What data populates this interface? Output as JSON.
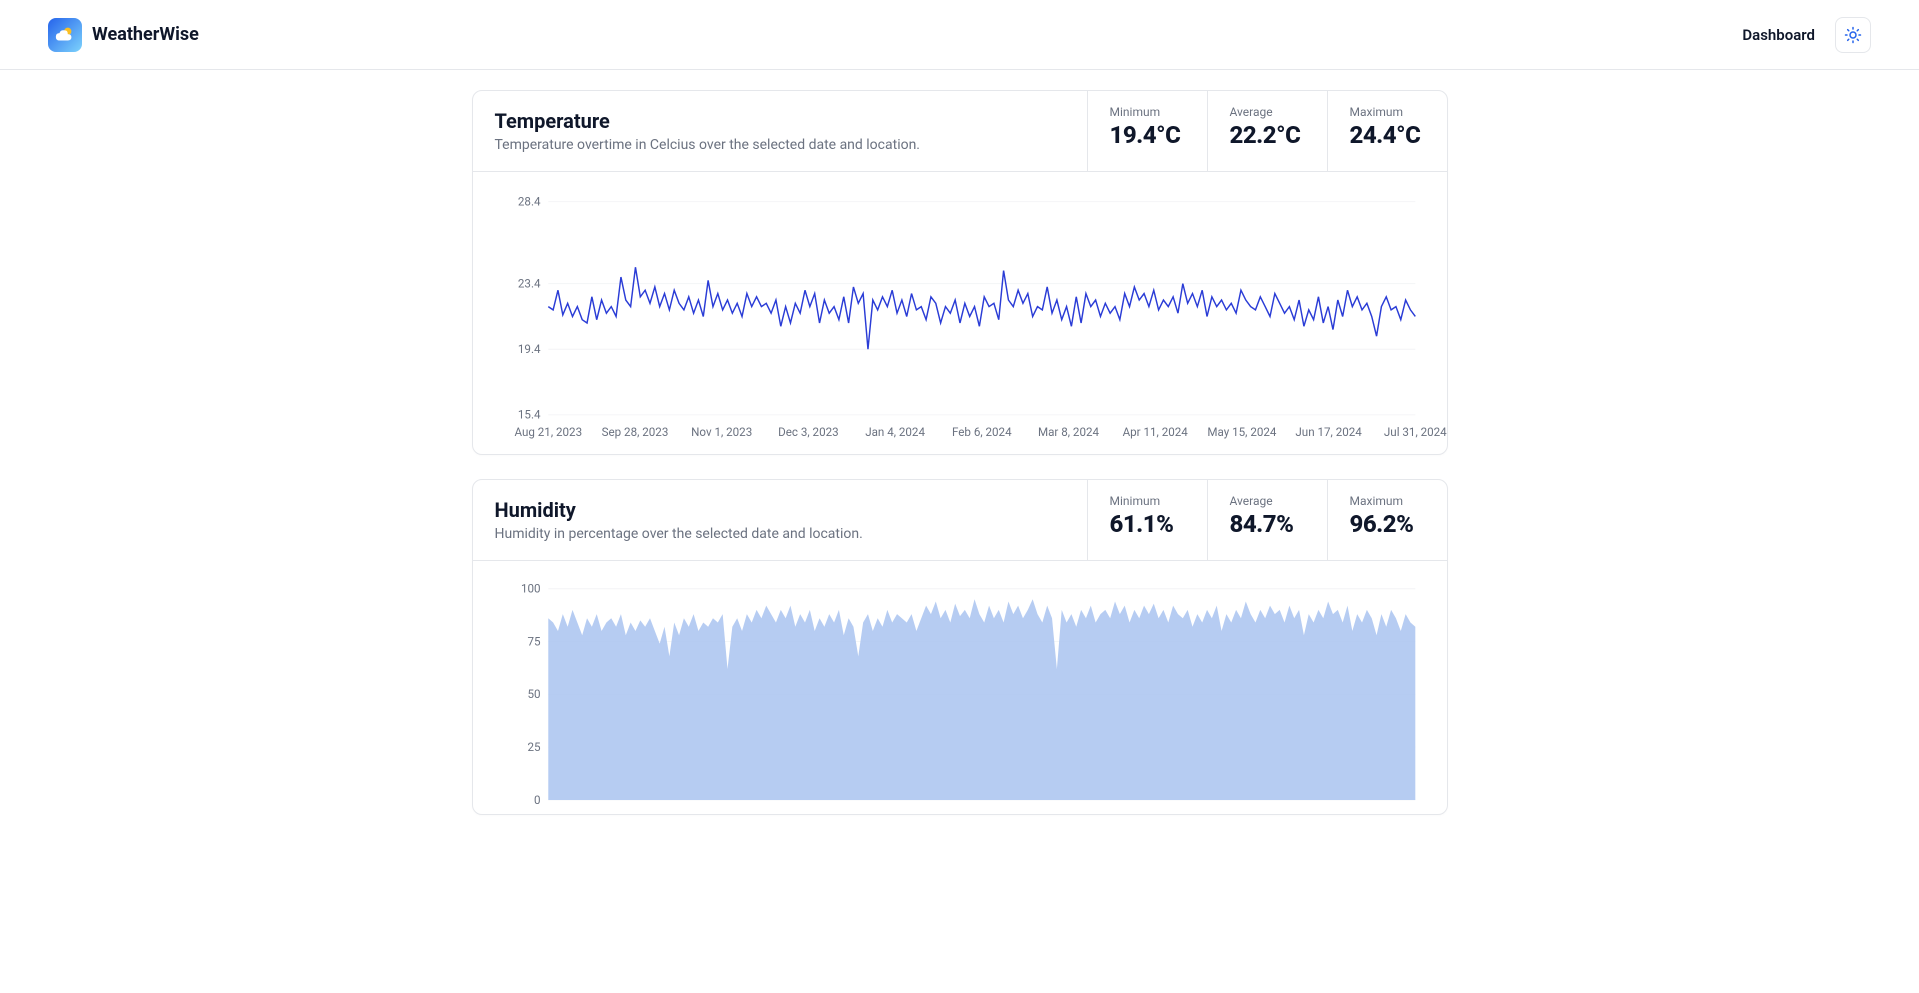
{
  "app": {
    "name": "WeatherWise"
  },
  "nav": {
    "dashboard": "Dashboard"
  },
  "colors": {
    "text": "#0f172a",
    "muted": "#6b7280",
    "border": "#e5e7eb",
    "grid": "#f3f4f6",
    "line": "#2a3cd6",
    "area_fill": "#a9c3f0",
    "area_fill_opacity": 0.85,
    "accent_blue": "#2563eb",
    "accent_sky": "#7dd3fc",
    "background": "#ffffff"
  },
  "cards": {
    "temperature": {
      "title": "Temperature",
      "subtitle": "Temperature overtime in Celcius over the selected date and location.",
      "stats": {
        "minimum": {
          "label": "Minimum",
          "value": "19.4°C"
        },
        "average": {
          "label": "Average",
          "value": "22.2°C"
        },
        "maximum": {
          "label": "Maximum",
          "value": "24.4°C"
        }
      },
      "chart": {
        "type": "line",
        "line_color": "#2a3cd6",
        "line_width": 1.5,
        "background": "#ffffff",
        "grid_color": "#f3f4f6",
        "yticks": [
          15.4,
          19.4,
          23.4,
          28.4
        ],
        "ylim": [
          15.4,
          28.4
        ],
        "xticks": [
          "Aug 21, 2023",
          "Sep 28, 2023",
          "Nov 1, 2023",
          "Dec 3, 2023",
          "Jan 4, 2024",
          "Feb 6, 2024",
          "Mar 8, 2024",
          "Apr 11, 2024",
          "May 15, 2024",
          "Jun 17, 2024",
          "Jul 31, 2024"
        ],
        "label_fontsize": 12,
        "values": [
          22.0,
          21.8,
          23.0,
          21.5,
          22.2,
          21.4,
          22.0,
          21.2,
          21.0,
          22.6,
          21.2,
          22.4,
          21.6,
          22.0,
          21.4,
          23.8,
          22.4,
          22.0,
          24.4,
          22.6,
          23.0,
          22.2,
          23.2,
          22.0,
          22.8,
          21.8,
          23.0,
          22.2,
          21.8,
          22.6,
          21.6,
          22.4,
          21.4,
          23.6,
          22.0,
          22.8,
          21.8,
          22.4,
          21.6,
          22.2,
          21.4,
          22.8,
          22.0,
          22.6,
          22.0,
          22.2,
          21.6,
          22.4,
          20.8,
          22.0,
          21.0,
          22.2,
          21.6,
          23.0,
          22.0,
          22.8,
          21.0,
          22.4,
          21.6,
          22.0,
          21.2,
          22.6,
          21.0,
          23.2,
          22.2,
          22.8,
          19.4,
          22.4,
          21.8,
          22.6,
          22.0,
          23.0,
          21.6,
          22.4,
          21.4,
          22.8,
          21.8,
          22.0,
          21.2,
          22.6,
          22.2,
          21.0,
          22.0,
          21.6,
          22.4,
          21.0,
          22.2,
          21.4,
          22.0,
          20.8,
          22.6,
          22.0,
          22.2,
          21.2,
          24.2,
          22.4,
          22.0,
          23.0,
          22.2,
          22.8,
          21.4,
          22.0,
          21.8,
          23.2,
          21.6,
          22.4,
          21.2,
          22.0,
          20.8,
          22.6,
          21.0,
          22.8,
          22.0,
          22.4,
          21.4,
          22.2,
          21.6,
          22.0,
          21.2,
          22.8,
          22.0,
          23.2,
          22.4,
          22.8,
          22.0,
          23.0,
          21.8,
          22.4,
          22.0,
          22.6,
          21.6,
          23.4,
          22.2,
          22.8,
          22.0,
          23.0,
          21.4,
          22.6,
          22.0,
          22.4,
          21.8,
          22.2,
          21.6,
          23.0,
          22.4,
          22.0,
          21.8,
          22.6,
          22.0,
          21.4,
          22.8,
          22.2,
          21.6,
          22.0,
          21.2,
          22.4,
          20.8,
          21.8,
          21.2,
          22.6,
          21.0,
          22.0,
          20.6,
          22.4,
          21.4,
          23.0,
          22.0,
          22.6,
          21.8,
          22.2,
          21.4,
          20.2,
          22.0,
          22.6,
          21.8,
          22.0,
          21.2,
          22.4,
          21.8,
          21.4
        ]
      }
    },
    "humidity": {
      "title": "Humidity",
      "subtitle": "Humidity in percentage over the selected date and location.",
      "stats": {
        "minimum": {
          "label": "Minimum",
          "value": "61.1%"
        },
        "average": {
          "label": "Average",
          "value": "84.7%"
        },
        "maximum": {
          "label": "Maximum",
          "value": "96.2%"
        }
      },
      "chart": {
        "type": "area",
        "fill_color": "#a9c3f0",
        "fill_opacity": 0.85,
        "line_color": "#a9c3f0",
        "line_width": 1,
        "background": "#ffffff",
        "grid_color": "#f3f4f6",
        "yticks": [
          0,
          25,
          50,
          75,
          100
        ],
        "ylim": [
          0,
          100
        ],
        "label_fontsize": 12,
        "values": [
          86,
          84,
          80,
          88,
          82,
          90,
          84,
          78,
          86,
          82,
          88,
          80,
          84,
          86,
          82,
          88,
          78,
          84,
          80,
          85,
          82,
          86,
          80,
          74,
          82,
          68,
          84,
          78,
          86,
          82,
          88,
          80,
          84,
          82,
          86,
          84,
          88,
          62,
          82,
          86,
          80,
          88,
          84,
          90,
          86,
          92,
          88,
          84,
          90,
          86,
          92,
          82,
          88,
          84,
          90,
          80,
          86,
          82,
          88,
          84,
          90,
          78,
          86,
          82,
          68,
          84,
          88,
          80,
          86,
          82,
          90,
          84,
          88,
          86,
          84,
          88,
          80,
          86,
          92,
          88,
          94,
          86,
          90,
          84,
          93,
          87,
          90,
          86,
          95,
          88,
          84,
          92,
          86,
          90,
          84,
          94,
          88,
          92,
          86,
          90,
          95,
          88,
          84,
          92,
          86,
          62,
          90,
          84,
          88,
          82,
          90,
          86,
          92,
          84,
          88,
          90,
          86,
          94,
          88,
          92,
          84,
          90,
          86,
          92,
          88,
          93,
          86,
          90,
          84,
          92,
          88,
          86,
          90,
          82,
          88,
          84,
          90,
          86,
          92,
          80,
          88,
          84,
          90,
          86,
          94,
          88,
          84,
          90,
          86,
          92,
          88,
          90,
          84,
          92,
          86,
          90,
          78,
          88,
          84,
          90,
          86,
          94,
          88,
          90,
          84,
          92,
          80,
          88,
          84,
          90,
          86,
          78,
          88,
          82,
          90,
          86,
          80,
          88,
          84,
          82
        ]
      }
    }
  }
}
